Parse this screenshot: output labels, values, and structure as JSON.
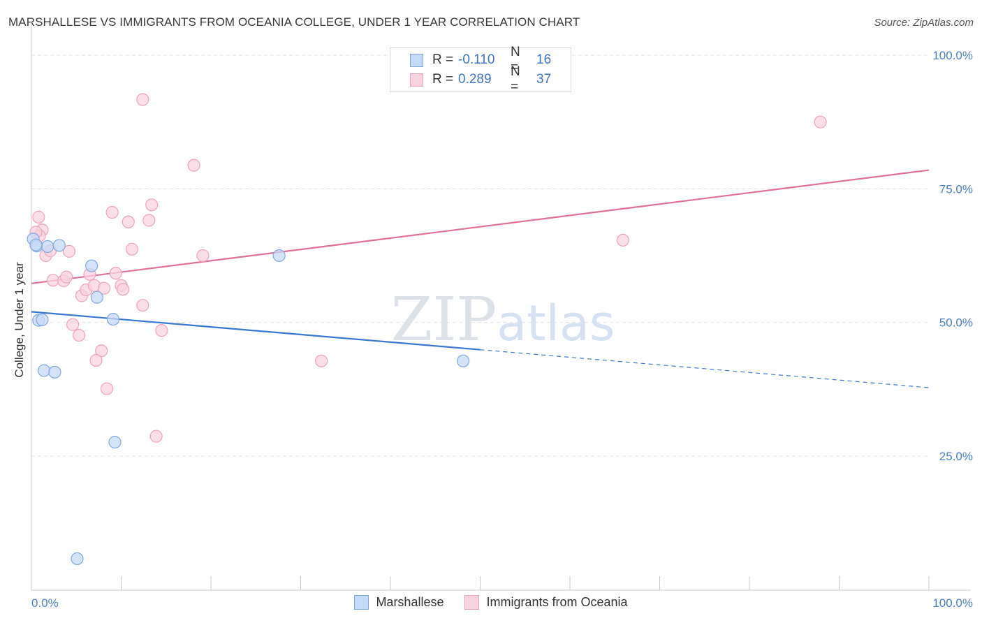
{
  "header": {
    "title": "MARSHALLESE VS IMMIGRANTS FROM OCEANIA COLLEGE, UNDER 1 YEAR CORRELATION CHART",
    "source": "Source: ZipAtlas.com"
  },
  "watermark": "ZIPatlas",
  "stats_box": {
    "rows": [
      {
        "r_label": "R =",
        "r_value": "-0.110",
        "n_label": "N =",
        "n_value": "16",
        "color": "#a9c8f2",
        "border": "#7fa8e0"
      },
      {
        "r_label": "R =",
        "r_value": "0.289",
        "n_label": "N =",
        "n_value": "37",
        "color": "#f9c6d6",
        "border": "#eea3bb"
      }
    ]
  },
  "legend": {
    "items": [
      {
        "label": "Marshallese",
        "color": "#c5daf6",
        "border": "#7fa8e0"
      },
      {
        "label": "Immigrants from Oceania",
        "color": "#fad3e0",
        "border": "#eea3bb"
      }
    ]
  },
  "chart_data": {
    "type": "scatter",
    "title": "MARSHALLESE VS IMMIGRANTS FROM OCEANIA COLLEGE, UNDER 1 YEAR CORRELATION CHART",
    "xlabel": "",
    "ylabel": "College, Under 1 year",
    "xlim": [
      0,
      100
    ],
    "ylim": [
      0,
      105
    ],
    "x_tick_labels": [
      {
        "value": 0,
        "label": "0.0%"
      },
      {
        "value": 100,
        "label": "100.0%"
      }
    ],
    "y_tick_labels": [
      {
        "value": 25,
        "label": "25.0%"
      },
      {
        "value": 50,
        "label": "50.0%"
      },
      {
        "value": 75,
        "label": "75.0%"
      },
      {
        "value": 100,
        "label": "100.0%"
      }
    ],
    "x_minor_ticks": [
      0,
      10,
      20,
      30,
      40,
      50,
      60,
      70,
      80,
      90,
      100
    ],
    "grid": true,
    "colors": {
      "marshallese_fill": "#c5daf6",
      "marshallese_stroke": "#7fa8e0",
      "marshallese_line": "#3a78d4",
      "oceania_fill": "#fad3e0",
      "oceania_stroke": "#eea3bb",
      "oceania_line": "#e0709a",
      "grid": "#e3e3e3",
      "tick_label": "#4a7fcf"
    },
    "series": [
      {
        "name": "Marshallese",
        "points": [
          [
            0.2,
            65.6
          ],
          [
            0.6,
            64.3
          ],
          [
            1.8,
            64.2
          ],
          [
            3.1,
            64.4
          ],
          [
            6.7,
            60.6
          ],
          [
            7.3,
            54.7
          ],
          [
            0.8,
            50.4
          ],
          [
            1.2,
            50.5
          ],
          [
            9.1,
            50.6
          ],
          [
            1.4,
            41.0
          ],
          [
            2.6,
            40.7
          ],
          [
            9.3,
            27.6
          ],
          [
            27.6,
            62.5
          ],
          [
            48.1,
            42.8
          ],
          [
            5.1,
            5.8
          ],
          [
            0.5,
            64.5
          ]
        ],
        "trend": {
          "x0": 0,
          "y0": 52.0,
          "x1": 50,
          "y1": 44.9,
          "dashed_to_x": 100,
          "dashed_to_y": 37.8
        }
      },
      {
        "name": "Immigrants from Oceania",
        "points": [
          [
            12.4,
            91.7
          ],
          [
            18.1,
            79.4
          ],
          [
            87.9,
            87.5
          ],
          [
            0.8,
            69.7
          ],
          [
            1.2,
            67.3
          ],
          [
            0.9,
            66.2
          ],
          [
            1.6,
            62.5
          ],
          [
            2.1,
            63.4
          ],
          [
            4.2,
            63.3
          ],
          [
            9.0,
            70.6
          ],
          [
            10.8,
            68.8
          ],
          [
            13.1,
            69.1
          ],
          [
            13.4,
            72.0
          ],
          [
            11.2,
            63.7
          ],
          [
            19.1,
            62.5
          ],
          [
            65.9,
            65.4
          ],
          [
            2.4,
            57.9
          ],
          [
            3.6,
            57.8
          ],
          [
            3.9,
            58.5
          ],
          [
            6.5,
            59.0
          ],
          [
            9.4,
            59.2
          ],
          [
            5.6,
            55.0
          ],
          [
            6.1,
            56.1
          ],
          [
            7.0,
            56.9
          ],
          [
            8.1,
            56.4
          ],
          [
            10.0,
            56.9
          ],
          [
            10.2,
            56.2
          ],
          [
            12.4,
            53.2
          ],
          [
            4.6,
            49.6
          ],
          [
            5.3,
            47.6
          ],
          [
            14.5,
            48.5
          ],
          [
            7.8,
            44.7
          ],
          [
            7.2,
            42.9
          ],
          [
            32.3,
            42.8
          ],
          [
            8.4,
            37.6
          ],
          [
            13.9,
            28.7
          ],
          [
            0.5,
            66.9
          ]
        ],
        "trend": {
          "x0": 0,
          "y0": 57.3,
          "x1": 100,
          "y1": 78.5
        }
      }
    ]
  }
}
